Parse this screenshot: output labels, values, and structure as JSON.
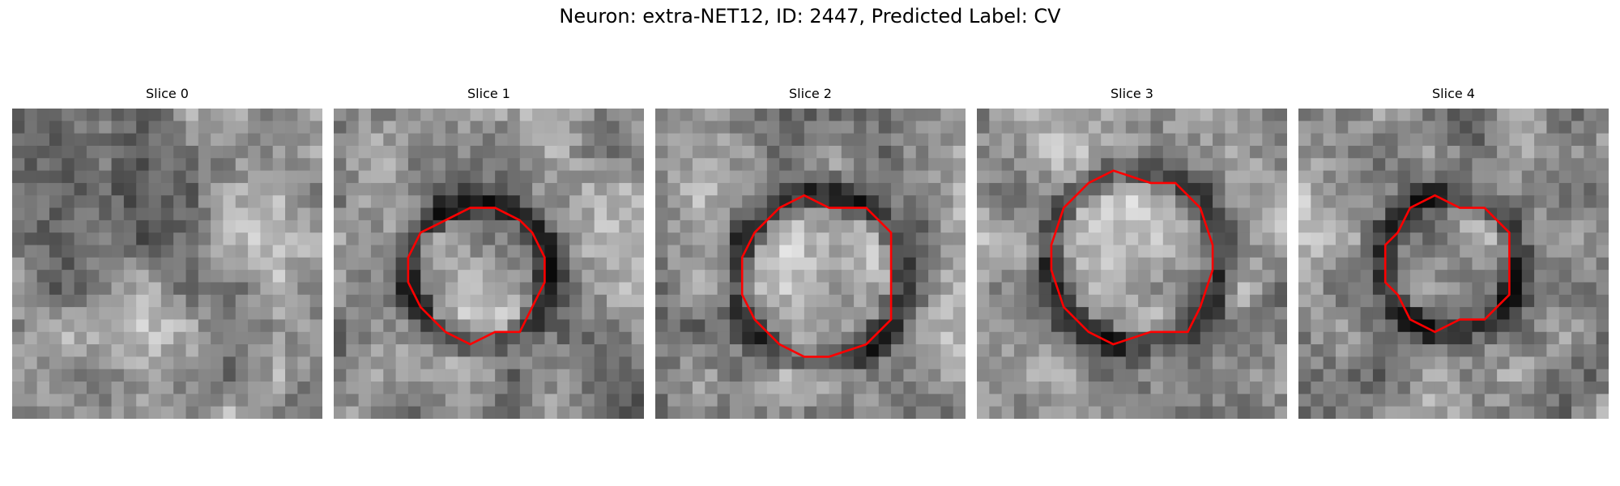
{
  "figure": {
    "title": "Neuron: extra-NET12, ID: 2447, Predicted Label: CV"
  },
  "panels": [
    {
      "title": "Slice 0",
      "has_contour": false,
      "seed": 11,
      "dark_blob_left": 0.3,
      "dark_blob_top": 0.25,
      "dark_blob_size": 0.2
    },
    {
      "title": "Slice 1",
      "has_contour": true,
      "seed": 23,
      "contour_color": "#ff0000",
      "contour_cx": 0.47,
      "contour_cy": 0.53,
      "contour_r": 0.22
    },
    {
      "title": "Slice 2",
      "has_contour": true,
      "seed": 37,
      "contour_color": "#ff0000",
      "contour_cx": 0.53,
      "contour_cy": 0.55,
      "contour_r": 0.26
    },
    {
      "title": "Slice 3",
      "has_contour": true,
      "seed": 51,
      "contour_color": "#ff0000",
      "contour_cx": 0.51,
      "contour_cy": 0.48,
      "contour_r": 0.27
    },
    {
      "title": "Slice 4",
      "has_contour": true,
      "seed": 67,
      "contour_color": "#ff0000",
      "contour_cx": 0.49,
      "contour_cy": 0.5,
      "contour_r": 0.21
    }
  ]
}
